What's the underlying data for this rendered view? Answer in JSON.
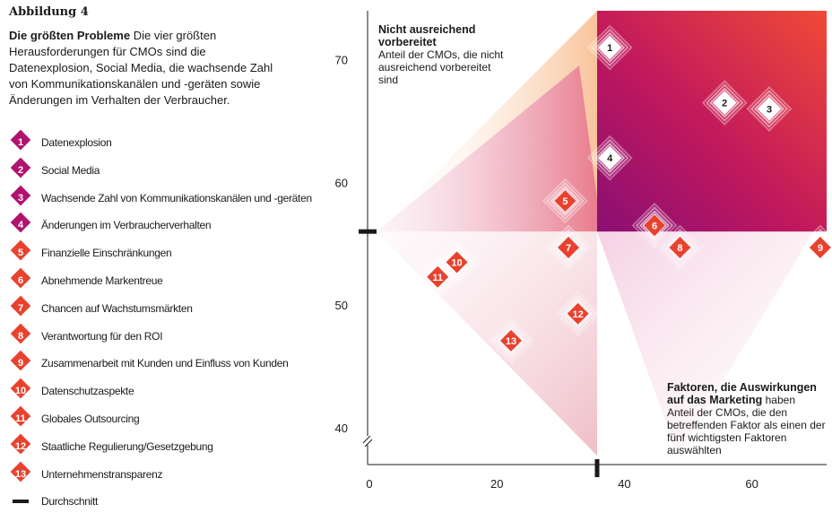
{
  "figure_label": "Abbildung 4",
  "description": {
    "bold": "Die größten Probleme",
    "text": "Die vier größten Herausforderungen für CMOs sind die Datenexplosion, Social Media, die wachsende Zahl von Kommunikationskanälen und -geräten sowie Änderungen im Verhalten der Verbraucher."
  },
  "annotations": {
    "top_left_title": "Nicht ausreichend vorbereitet",
    "top_left_text": "Anteil der CMOs, die nicht ausreichend vorbereitet sind",
    "bottom_right_title": "Faktoren, die Auswirkungen auf das Marketing",
    "bottom_right_title_suffix": "haben",
    "bottom_right_text": "Anteil der CMOs, die den betreffenden Faktor als einen der fünf wichtigsten Faktoren auswählten"
  },
  "legend_average": "Durchschnitt",
  "colors": {
    "purple": "#b0126e",
    "red": "#e8422f",
    "orange": "#f08a3c",
    "dark": "#1a1a1a"
  },
  "chart_data": {
    "type": "scatter",
    "xlim": [
      0,
      72
    ],
    "ylim": [
      37,
      74
    ],
    "x_ticks": [
      0,
      20,
      40,
      60
    ],
    "y_ticks": [
      40,
      50,
      60,
      70
    ],
    "average": {
      "x": 36,
      "y": 56
    },
    "points": [
      {
        "id": "1",
        "label": "Datenexplosion",
        "x": 38,
        "y": 71,
        "group": "purple"
      },
      {
        "id": "2",
        "label": "Social Media",
        "x": 56,
        "y": 66.5,
        "group": "purple"
      },
      {
        "id": "3",
        "label": "Wachsende Zahl von Kommunikationskanälen und -geräten",
        "x": 63,
        "y": 66,
        "group": "purple"
      },
      {
        "id": "4",
        "label": "Änderungen im Verbraucherverhalten",
        "x": 38,
        "y": 62,
        "group": "purple"
      },
      {
        "id": "5",
        "label": "Finanzielle Einschränkungen",
        "x": 31,
        "y": 58.5,
        "group": "red"
      },
      {
        "id": "6",
        "label": "Abnehmende Markentreue",
        "x": 45,
        "y": 56.5,
        "group": "red"
      },
      {
        "id": "7",
        "label": "Chancen auf Wachstumsmärkten",
        "x": 31.5,
        "y": 54.7,
        "group": "red"
      },
      {
        "id": "8",
        "label": "Verantwortung für den ROI",
        "x": 49,
        "y": 54.7,
        "group": "red"
      },
      {
        "id": "9",
        "label": "Zusammenarbeit mit Kunden und Einfluss von Kunden",
        "x": 71,
        "y": 54.7,
        "group": "red"
      },
      {
        "id": "10",
        "label": "Datenschutzaspekte",
        "x": 14,
        "y": 53.5,
        "group": "red"
      },
      {
        "id": "11",
        "label": "Globales Outsourcing",
        "x": 11,
        "y": 52.3,
        "group": "red"
      },
      {
        "id": "12",
        "label": "Staatliche Regulierung/Gesetzgebung",
        "x": 33,
        "y": 49.3,
        "group": "red"
      },
      {
        "id": "13",
        "label": "Unternehmenstransparenz",
        "x": 22.5,
        "y": 47.1,
        "group": "red"
      }
    ]
  }
}
